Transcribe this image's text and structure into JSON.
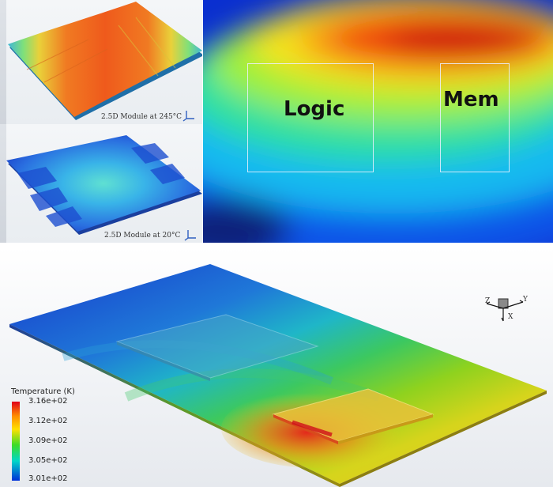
{
  "panels": {
    "warp_hot": {
      "caption": "2.5D Module at 245°C"
    },
    "warp_cold": {
      "caption": "2.5D Module at 20°C"
    },
    "heatmap": {
      "labels": {
        "logic": "Logic",
        "mem": "Mem"
      }
    },
    "simulation": {
      "legend": {
        "title": "Temperature (K)",
        "ticks": [
          "3.16e+02",
          "3.12e+02",
          "3.09e+02",
          "3.05e+02",
          "3.01e+02"
        ],
        "colors": [
          "#e0001a",
          "#ffe000",
          "#3cdc28",
          "#00d7c8",
          "#0030d8"
        ]
      },
      "axis_triad": {
        "labels": [
          "Z",
          "Y",
          "X"
        ]
      }
    }
  }
}
